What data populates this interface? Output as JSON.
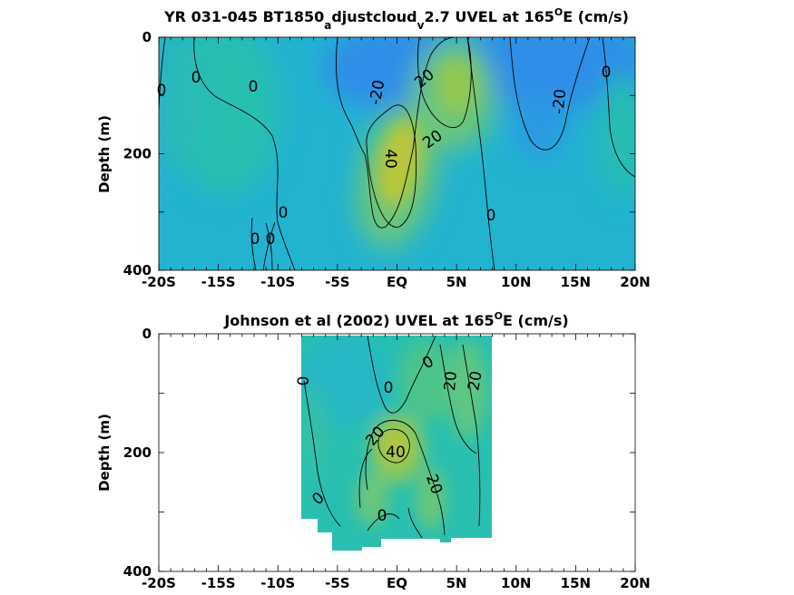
{
  "chart_data": [
    {
      "type": "heatmap",
      "title_parts": [
        "YR 031-045 BT1850",
        "a",
        "djustcloud",
        "v",
        "2.7 UVEL at 165",
        "O",
        "E (cm/s)"
      ],
      "ylabel": "Depth (m)",
      "xticks": [
        "-20S",
        "-15S",
        "-10S",
        "-5S",
        "EQ",
        "5N",
        "10N",
        "15N",
        "20N"
      ],
      "yticks": [
        "0",
        "200",
        "400"
      ],
      "xlim": [
        -20,
        20
      ],
      "ylim": [
        0,
        400
      ],
      "y_reversed": true,
      "colormap": [
        "#3f7ae8",
        "#2b95e6",
        "#1db5ce",
        "#28c0a8",
        "#6cc67a",
        "#b1c63c",
        "#dcc12c"
      ],
      "contour_interval": 20,
      "contour_labels": [
        "0",
        "0",
        "0",
        "0",
        "0",
        "0",
        "0",
        "0",
        "-20",
        "-20",
        "20",
        "20",
        "40"
      ]
    },
    {
      "type": "heatmap",
      "title_parts": [
        "Johnson et al (2002) UVEL at 165",
        "O",
        "E (cm/s)"
      ],
      "ylabel": "Depth (m)",
      "xticks": [
        "-20S",
        "-15S",
        "-10S",
        "-5S",
        "EQ",
        "5N",
        "10N",
        "15N",
        "20N"
      ],
      "yticks": [
        "0",
        "200",
        "400"
      ],
      "xlim": [
        -20,
        20
      ],
      "ylim": [
        0,
        400
      ],
      "y_reversed": true,
      "data_lon_range": [
        -8,
        8
      ],
      "contour_interval": 20,
      "contour_labels": [
        "0",
        "0",
        "0",
        "0",
        "0",
        "20",
        "20",
        "20",
        "40",
        "20"
      ]
    }
  ]
}
